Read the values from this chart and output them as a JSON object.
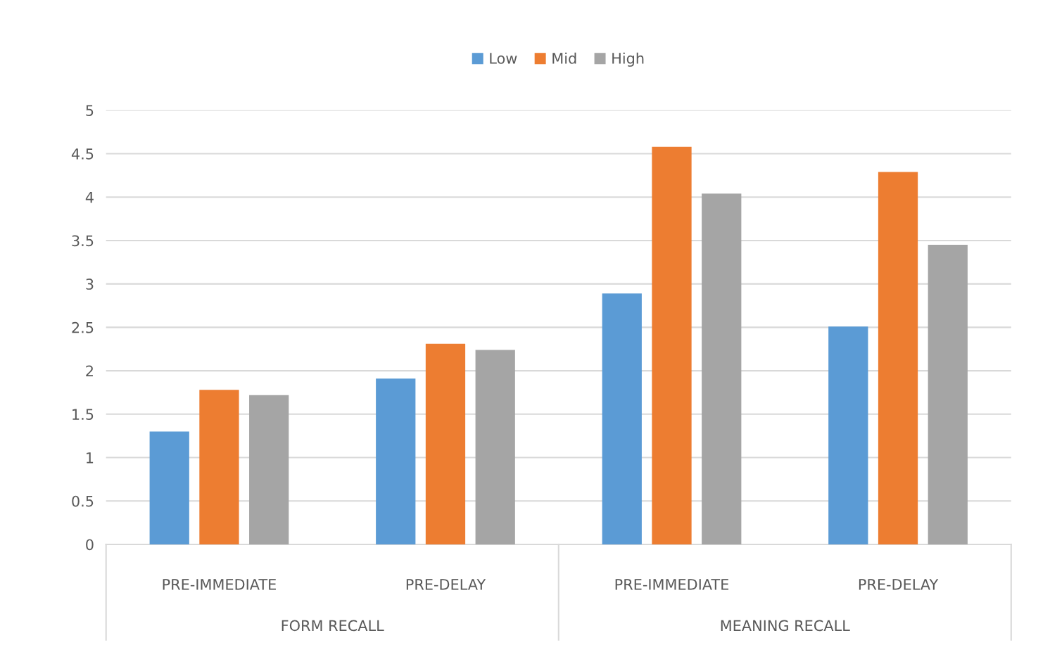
{
  "chart_data": {
    "type": "bar",
    "categories": [
      "PRE-IMMEDIATE",
      "PRE-DELAY",
      "PRE-IMMEDIATE",
      "PRE-DELAY"
    ],
    "series": [
      {
        "name": "Low",
        "color": "#5b9bd5",
        "values": [
          1.3,
          1.91,
          2.89,
          2.51
        ]
      },
      {
        "name": "Mid",
        "color": "#ed7d31",
        "values": [
          1.78,
          2.31,
          4.58,
          4.29
        ]
      },
      {
        "name": "High",
        "color": "#a5a5a5",
        "values": [
          1.72,
          2.24,
          4.04,
          3.45
        ]
      }
    ],
    "annotations": [
      "FORM RECALL",
      "MEANING RECALL"
    ],
    "ylim": [
      0,
      5
    ],
    "yticks": [
      0,
      0.5,
      1,
      1.5,
      2,
      2.5,
      3,
      3.5,
      4,
      4.5,
      5
    ],
    "grid": "y",
    "legend": "top"
  }
}
